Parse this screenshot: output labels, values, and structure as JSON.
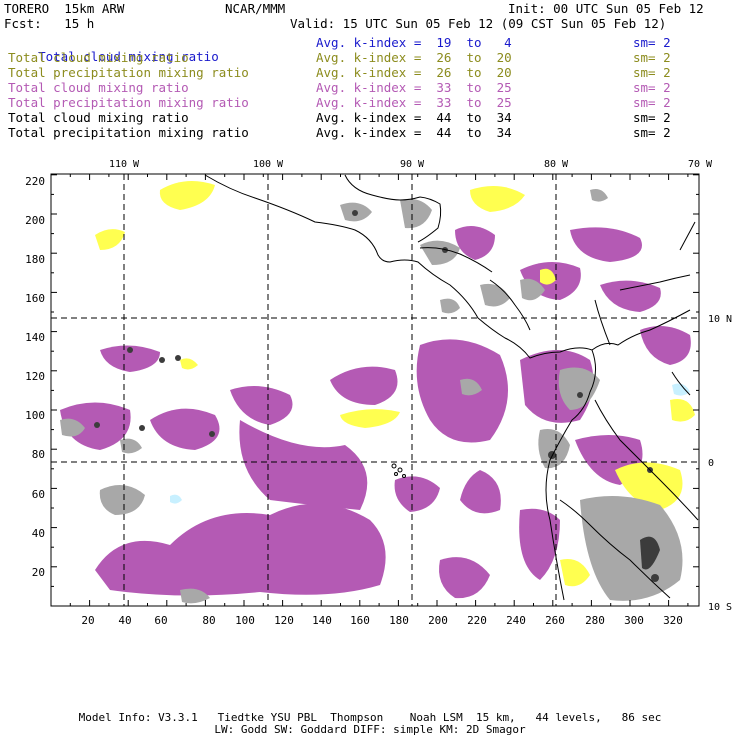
{
  "header": {
    "model": "TORERO  15km ARW",
    "center": "NCAR/MMM",
    "init": "Init: 00 UTC Sun 05 Feb 12",
    "fcst": "Fcst:   15 h",
    "valid": "Valid: 15 UTC Sun 05 Feb 12 (09 CST Sun 05 Feb 12)"
  },
  "legend": [
    {
      "field": "Total cloud mixing ratio",
      "kindex": "Avg. k-index =  19  to   4",
      "sm": "sm= 2",
      "color": "#1a1acc"
    },
    {
      "field": "Total cloud mixing ratio",
      "kindex": "Avg. k-index =  26  to  20",
      "sm": "sm= 2",
      "color": "#8c8c1e"
    },
    {
      "field": "Total precipitation mixing ratio",
      "kindex": "Avg. k-index =  26  to  20",
      "sm": "sm= 2",
      "color": "#8c8c1e"
    },
    {
      "field": "Total cloud mixing ratio",
      "kindex": "Avg. k-index =  33  to  25",
      "sm": "sm= 2",
      "color": "#b45ab4"
    },
    {
      "field": "Total precipitation mixing ratio",
      "kindex": "Avg. k-index =  33  to  25",
      "sm": "sm= 2",
      "color": "#b45ab4"
    },
    {
      "field": "Total cloud mixing ratio",
      "kindex": "Avg. k-index =  44  to  34",
      "sm": "sm= 2",
      "color": "#000000"
    },
    {
      "field": "Total precipitation mixing ratio",
      "kindex": "Avg. k-index =  44  to  34",
      "sm": "sm= 2",
      "color": "#000000"
    }
  ],
  "map": {
    "x_ticks": [
      "20",
      "40",
      "60",
      "80",
      "100",
      "120",
      "140",
      "160",
      "180",
      "200",
      "220",
      "240",
      "260",
      "280",
      "300",
      "320"
    ],
    "y_ticks": [
      "20",
      "40",
      "60",
      "80",
      "100",
      "120",
      "140",
      "160",
      "180",
      "200",
      "220"
    ],
    "lon_labels": [
      "110 W",
      "100 W",
      "90 W",
      "80 W",
      "70 W"
    ],
    "lat_labels": [
      "10 N",
      "0",
      "10 S"
    ],
    "colors": {
      "purple": "#b45ab4",
      "gray": "#a8a8a8",
      "dark": "#3c3c3c",
      "yellow": "#ffff50",
      "cyan": "#c8f0ff"
    }
  },
  "footer": {
    "line1": "Model Info: V3.3.1   Tiedtke YSU PBL  Thompson    Noah LSM  15 km,   44 levels,   86 sec",
    "line2": "LW: Godd SW: Goddard DIFF: simple KM: 2D Smagor"
  }
}
